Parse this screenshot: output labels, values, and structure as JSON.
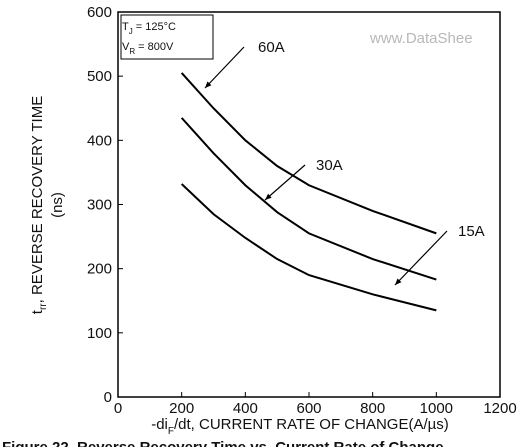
{
  "chart_data": {
    "type": "line",
    "ylabel": {
      "main": "t",
      "sub": "rr",
      "rest": ", REVERSE RECOVERY TIME",
      "unit": "(ns)"
    },
    "xlabel": {
      "main": "-di",
      "sub": "F",
      "rest": "/dt, CURRENT RATE OF CHANGE(A/µs)"
    },
    "conditions": [
      {
        "main": "T",
        "sub": "J",
        "rest": " = 125°C"
      },
      {
        "main": "V",
        "sub": "R",
        "rest": " = 800V"
      }
    ],
    "watermark": "www.DataShee",
    "caption": "Figure 22. Reverse Recovery Time vs. Current Rate of Change",
    "xlim": [
      0,
      1200
    ],
    "xticks": [
      0,
      200,
      400,
      600,
      800,
      1000,
      1200
    ],
    "ylim": [
      0,
      600
    ],
    "yticks": [
      0,
      100,
      200,
      300,
      400,
      500,
      600
    ],
    "x": [
      200,
      300,
      400,
      500,
      600,
      800,
      1000
    ],
    "series": [
      {
        "name": "60A",
        "color": "#000000",
        "values": [
          505,
          450,
          400,
          360,
          330,
          290,
          255
        ]
      },
      {
        "name": "30A",
        "color": "#000000",
        "values": [
          435,
          380,
          330,
          288,
          255,
          215,
          183
        ]
      },
      {
        "name": "15A",
        "color": "#000000",
        "values": [
          332,
          285,
          248,
          215,
          190,
          160,
          135
        ]
      }
    ]
  }
}
